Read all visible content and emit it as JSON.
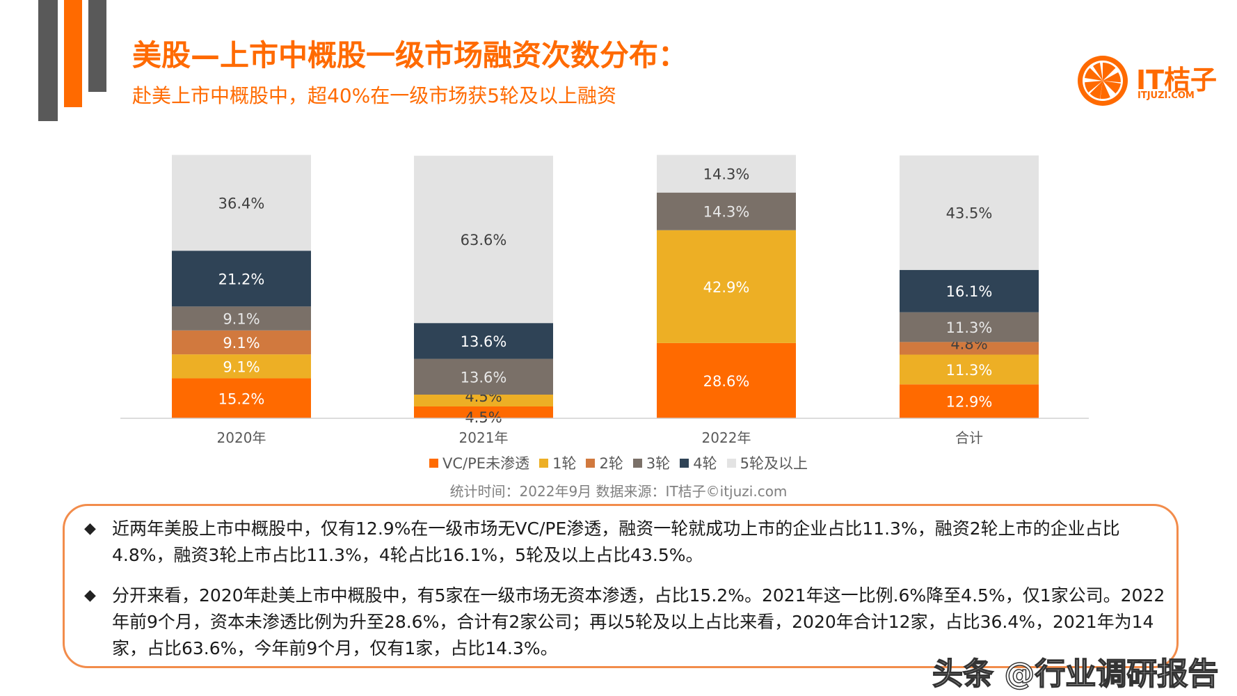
{
  "header": {
    "title": "美股—上市中概股一级市场融资次数分布：",
    "subtitle": "赴美上市中概股中，超40%在一级市场获5轮及以上融资"
  },
  "logo": {
    "name": "IT桔子",
    "url": "ITJUZI.COM",
    "color": "#FF6A00"
  },
  "chart_data": {
    "type": "bar",
    "stacked": true,
    "percent": true,
    "categories": [
      "2020年",
      "2021年",
      "2022年",
      "合计"
    ],
    "ylim": [
      0,
      100
    ],
    "grid": false,
    "legend_position": "bottom",
    "series": [
      {
        "name": "VC/PE未渗透",
        "color": "#FF6A00",
        "label_color": "#ffffff",
        "values": [
          15.2,
          4.5,
          28.6,
          12.9
        ],
        "labels": [
          "15.2%",
          "4.5%",
          "28.6%",
          "12.9%"
        ]
      },
      {
        "name": "1轮",
        "color": "#EDAF25",
        "label_color": "#ffffff",
        "values": [
          9.1,
          4.5,
          42.9,
          11.3
        ],
        "labels": [
          "9.1%",
          "4.5%",
          "42.9%",
          "11.3%"
        ]
      },
      {
        "name": "2轮",
        "color": "#D1793E",
        "label_color": "#ffffff",
        "values": [
          9.1,
          0,
          0,
          4.8
        ],
        "labels": [
          "9.1%",
          "",
          "",
          "4.8%"
        ]
      },
      {
        "name": "3轮",
        "color": "#7A7068",
        "label_color": "#e8e8e8",
        "values": [
          9.1,
          13.6,
          14.3,
          11.3
        ],
        "labels": [
          "9.1%",
          "13.6%",
          "14.3%",
          "11.3%"
        ]
      },
      {
        "name": "4轮",
        "color": "#2F4356",
        "label_color": "#ffffff",
        "values": [
          21.2,
          13.6,
          0,
          16.1
        ],
        "labels": [
          "21.2%",
          "13.6%",
          "",
          "16.1%"
        ]
      },
      {
        "name": "5轮及以上",
        "color": "#E3E3E3",
        "label_color": "#404040",
        "values": [
          36.4,
          63.6,
          14.3,
          43.5
        ],
        "labels": [
          "36.4%",
          "63.6%",
          "14.3%",
          "43.5%"
        ]
      }
    ]
  },
  "source": "统计时间：2022年9月   数据来源：IT桔子©itjuzi.com",
  "notes": [
    {
      "bullet": "◆",
      "text": "近两年美股上市中概股中，仅有12.9%在一级市场无VC/PE渗透，融资一轮就成功上市的企业占比11.3%，融资2轮上市的企业占比4.8%，融资3轮上市占比11.3%，4轮占比16.1%，5轮及以上占比43.5%。"
    },
    {
      "bullet": "◆",
      "text": "分开来看，2020年赴美上市中概股中，有5家在一级市场无资本渗透，占比15.2%。2021年这一比例.6%降至4.5%，仅1家公司。2022年前9个月，资本未渗透比例为升至28.6%，合计有2家公司；再以5轮及以上占比来看，2020年合计12家，占比36.4%，2021年为14家，占比63.6%，今年前9个月，仅有1家，占比14.3%。"
    }
  ],
  "watermark": "头条 @行业调研报告"
}
